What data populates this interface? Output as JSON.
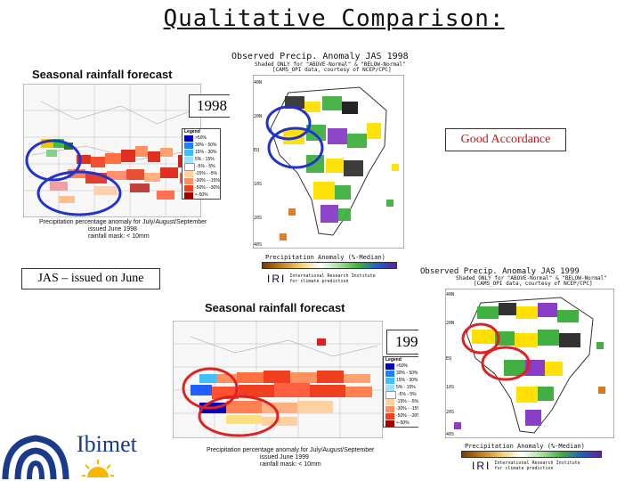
{
  "slide": {
    "title": "Qualitative Comparison: ",
    "label_1998": "1998",
    "label_1999": "1999",
    "good_accordance": "Good Accordance",
    "jas_issued": "JAS – issued on June"
  },
  "forecast_1998": {
    "title": "Seasonal rainfall forecast",
    "caption_1": "Precipitation percentage anomaly for July/August/September",
    "caption_2": "issued June 1998",
    "caption_3": "rainfall mask: < 10mm",
    "legend_title": "Legend"
  },
  "forecast_1999": {
    "title": "Seasonal rainfall forecast",
    "caption_1": "Precipitation percentage anomaly for July/August/September",
    "caption_2": "issued June 1999",
    "caption_3": "rainfall mask: < 10mm",
    "legend_title": "Legend"
  },
  "legend_entries": [
    ">50%",
    "30% - 50%",
    "15% - 30%",
    "5% - 15%",
    "-5% - 5%",
    "-15% - -5%",
    "-30% - -15%",
    "-50% - -30%",
    "<-50%"
  ],
  "observed_1998": {
    "header": "Observed Precip. Anomaly JAS 1998",
    "sub_1": "Shaded ONLY for \"ABOVE-Normal\" & \"BELOW-Normal\"",
    "sub_2": "[CAMS_OPI data, courtesy of NCEP/CPC]",
    "bar_label": "Precipitation Anomaly (%-Median)"
  },
  "observed_1999": {
    "header": "Observed Precip. Anomaly JAS 1999",
    "sub_1": "Shaded ONLY for \"ABOVE-Normal\" & \"BELOW-Normal\"",
    "sub_2": "[CAMS_OPI data, courtesy of NCEP/CPC]",
    "bar_label": "Precipitation Anomaly (%-Median)"
  },
  "iri": {
    "mark": "IRI",
    "line_1": "International Research Institute",
    "line_2": "for climate prediction"
  },
  "ibimet": {
    "name": "Ibimet"
  },
  "colors": {
    "circle_blue": "#2233cc",
    "circle_red": "#dd2222"
  }
}
